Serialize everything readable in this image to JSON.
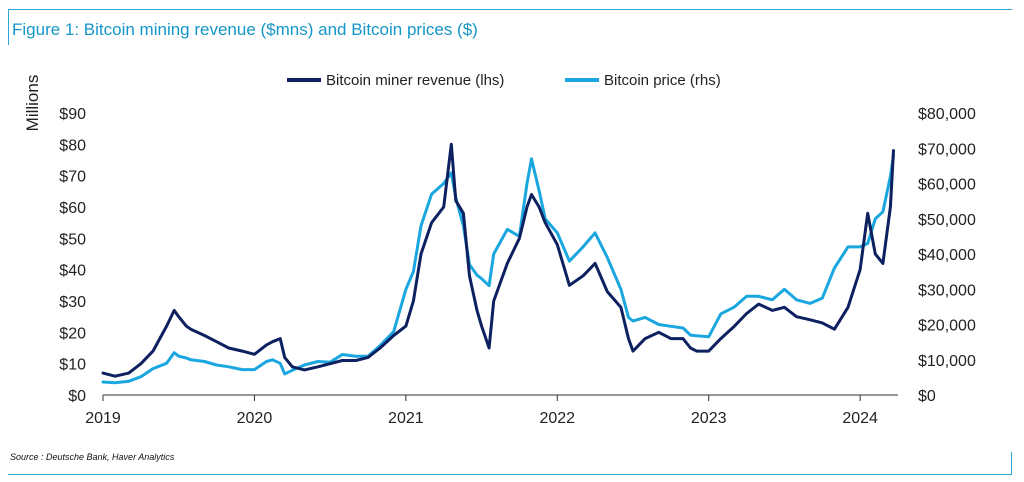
{
  "figure": {
    "title": "Figure 1: Bitcoin mining revenue ($mns) and Bitcoin prices ($)",
    "source": "Source : Deutsche Bank, Haver Analytics"
  },
  "chart_data": {
    "type": "line",
    "title": "Figure 1: Bitcoin mining revenue ($mns) and Bitcoin prices ($)",
    "xlabel": "",
    "ylabel_left": "Millions",
    "ylabel_right": "",
    "x_ticks": [
      2019,
      2020,
      2021,
      2022,
      2023,
      2024
    ],
    "x_tick_labels": [
      "2019",
      "2020",
      "2021",
      "2022",
      "2023",
      "2024"
    ],
    "xlim": [
      2019.0,
      2024.25
    ],
    "ylim_left": [
      0,
      90
    ],
    "ylim_right": [
      0,
      80000
    ],
    "y_ticks_left": [
      "$0",
      "$10",
      "$20",
      "$30",
      "$40",
      "$50",
      "$60",
      "$70",
      "$80",
      "$90"
    ],
    "y_ticks_right": [
      "$0",
      "$10,000",
      "$20,000",
      "$30,000",
      "$40,000",
      "$50,000",
      "$60,000",
      "$70,000",
      "$80,000"
    ],
    "legend_position": "top-center",
    "series": [
      {
        "name": "Bitcoin miner revenue (lhs)",
        "axis": "left",
        "color": "#0d2060",
        "x": [
          2019.0,
          2019.08,
          2019.17,
          2019.25,
          2019.33,
          2019.42,
          2019.47,
          2019.5,
          2019.55,
          2019.58,
          2019.67,
          2019.75,
          2019.83,
          2019.92,
          2020.0,
          2020.08,
          2020.12,
          2020.17,
          2020.2,
          2020.25,
          2020.33,
          2020.42,
          2020.5,
          2020.58,
          2020.67,
          2020.75,
          2020.83,
          2020.92,
          2021.0,
          2021.05,
          2021.1,
          2021.17,
          2021.25,
          2021.3,
          2021.33,
          2021.38,
          2021.42,
          2021.47,
          2021.5,
          2021.55,
          2021.58,
          2021.67,
          2021.75,
          2021.8,
          2021.83,
          2021.88,
          2021.92,
          2022.0,
          2022.08,
          2022.17,
          2022.25,
          2022.33,
          2022.42,
          2022.47,
          2022.5,
          2022.58,
          2022.67,
          2022.75,
          2022.83,
          2022.88,
          2022.92,
          2023.0,
          2023.08,
          2023.17,
          2023.25,
          2023.33,
          2023.42,
          2023.5,
          2023.58,
          2023.67,
          2023.75,
          2023.83,
          2023.92,
          2024.0,
          2024.05,
          2024.1,
          2024.15,
          2024.2,
          2024.22
        ],
        "values": [
          7,
          6,
          7,
          10,
          14,
          22,
          27,
          25,
          22,
          21,
          19,
          17,
          15,
          14,
          13,
          16,
          17,
          18,
          12,
          9,
          8,
          9,
          10,
          11,
          11,
          12,
          15,
          19,
          22,
          30,
          45,
          55,
          60,
          80,
          62,
          58,
          38,
          27,
          22,
          15,
          30,
          42,
          50,
          60,
          64,
          60,
          55,
          48,
          35,
          38,
          42,
          33,
          28,
          18,
          14,
          18,
          20,
          18,
          18,
          15,
          14,
          14,
          18,
          22,
          26,
          29,
          27,
          28,
          25,
          24,
          23,
          21,
          28,
          40,
          58,
          45,
          42,
          60,
          78
        ]
      },
      {
        "name": "Bitcoin price (rhs)",
        "axis": "right",
        "color": "#1aa7e0",
        "x": [
          2019.0,
          2019.08,
          2019.17,
          2019.25,
          2019.33,
          2019.42,
          2019.47,
          2019.5,
          2019.55,
          2019.58,
          2019.67,
          2019.75,
          2019.83,
          2019.92,
          2020.0,
          2020.08,
          2020.12,
          2020.17,
          2020.2,
          2020.25,
          2020.33,
          2020.42,
          2020.5,
          2020.58,
          2020.67,
          2020.75,
          2020.83,
          2020.92,
          2021.0,
          2021.05,
          2021.1,
          2021.17,
          2021.25,
          2021.3,
          2021.33,
          2021.38,
          2021.42,
          2021.47,
          2021.5,
          2021.55,
          2021.58,
          2021.67,
          2021.75,
          2021.8,
          2021.83,
          2021.88,
          2021.92,
          2022.0,
          2022.08,
          2022.17,
          2022.25,
          2022.33,
          2022.42,
          2022.47,
          2022.5,
          2022.58,
          2022.67,
          2022.75,
          2022.83,
          2022.88,
          2022.92,
          2023.0,
          2023.08,
          2023.17,
          2023.25,
          2023.33,
          2023.42,
          2023.5,
          2023.58,
          2023.67,
          2023.75,
          2023.83,
          2023.92,
          2024.0,
          2024.05,
          2024.1,
          2024.15,
          2024.2,
          2024.22
        ],
        "values": [
          3700,
          3500,
          3900,
          5200,
          7500,
          9000,
          12000,
          11000,
          10500,
          10000,
          9500,
          8500,
          8000,
          7200,
          7200,
          9500,
          10000,
          9000,
          6000,
          7000,
          8500,
          9500,
          9300,
          11500,
          11000,
          11000,
          14000,
          18000,
          30000,
          35000,
          48000,
          57000,
          60000,
          63000,
          56000,
          48000,
          37000,
          34000,
          33000,
          31000,
          40000,
          47000,
          45000,
          60000,
          67000,
          58000,
          50000,
          46000,
          38000,
          42000,
          46000,
          39000,
          30000,
          22000,
          21000,
          22000,
          20000,
          19500,
          19000,
          17000,
          16800,
          16500,
          23000,
          25000,
          28000,
          28000,
          27000,
          30000,
          27000,
          26000,
          27500,
          36000,
          42000,
          42000,
          43000,
          50000,
          52000,
          62000,
          68000
        ]
      }
    ]
  }
}
